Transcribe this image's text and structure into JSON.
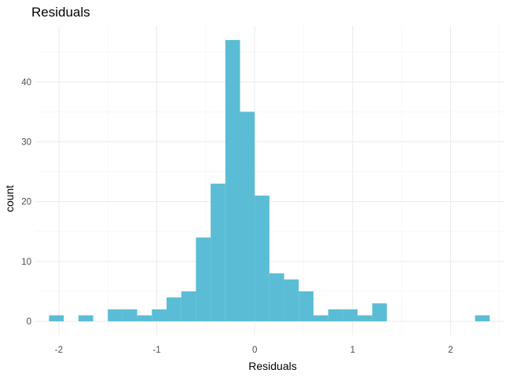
{
  "chart_data": {
    "type": "bar",
    "subtype": "histogram",
    "title": "Residuals",
    "xlabel": "Residuals",
    "ylabel": "count",
    "bin_width": 0.15,
    "bins": [
      {
        "x0": -2.1,
        "x1": -1.95,
        "count": 1
      },
      {
        "x0": -1.95,
        "x1": -1.8,
        "count": 0
      },
      {
        "x0": -1.8,
        "x1": -1.65,
        "count": 1
      },
      {
        "x0": -1.65,
        "x1": -1.5,
        "count": 0
      },
      {
        "x0": -1.5,
        "x1": -1.35,
        "count": 2
      },
      {
        "x0": -1.35,
        "x1": -1.2,
        "count": 2
      },
      {
        "x0": -1.2,
        "x1": -1.05,
        "count": 1
      },
      {
        "x0": -1.05,
        "x1": -0.9,
        "count": 2
      },
      {
        "x0": -0.9,
        "x1": -0.75,
        "count": 4
      },
      {
        "x0": -0.75,
        "x1": -0.6,
        "count": 5
      },
      {
        "x0": -0.6,
        "x1": -0.45,
        "count": 14
      },
      {
        "x0": -0.45,
        "x1": -0.3,
        "count": 23
      },
      {
        "x0": -0.3,
        "x1": -0.15,
        "count": 47
      },
      {
        "x0": -0.15,
        "x1": 0.0,
        "count": 35
      },
      {
        "x0": 0.0,
        "x1": 0.15,
        "count": 21
      },
      {
        "x0": 0.15,
        "x1": 0.3,
        "count": 8
      },
      {
        "x0": 0.3,
        "x1": 0.45,
        "count": 7
      },
      {
        "x0": 0.45,
        "x1": 0.6,
        "count": 5
      },
      {
        "x0": 0.6,
        "x1": 0.75,
        "count": 1
      },
      {
        "x0": 0.75,
        "x1": 0.9,
        "count": 2
      },
      {
        "x0": 0.9,
        "x1": 1.05,
        "count": 2
      },
      {
        "x0": 1.05,
        "x1": 1.2,
        "count": 1
      },
      {
        "x0": 1.2,
        "x1": 1.35,
        "count": 3
      },
      {
        "x0": 1.35,
        "x1": 1.5,
        "count": 0
      },
      {
        "x0": 1.5,
        "x1": 1.65,
        "count": 0
      },
      {
        "x0": 1.65,
        "x1": 1.8,
        "count": 0
      },
      {
        "x0": 1.8,
        "x1": 1.95,
        "count": 0
      },
      {
        "x0": 1.95,
        "x1": 2.1,
        "count": 0
      },
      {
        "x0": 2.1,
        "x1": 2.25,
        "count": 0
      },
      {
        "x0": 2.25,
        "x1": 2.4,
        "count": 1
      }
    ],
    "xlim": [
      -2.24,
      2.55
    ],
    "ylim": [
      -2.35,
      49.35
    ],
    "x_ticks": [
      -2,
      -1,
      0,
      1,
      2
    ],
    "x_tick_labels": [
      "-2",
      "-1",
      "0",
      "1",
      "2"
    ],
    "y_ticks": [
      0,
      10,
      20,
      30,
      40
    ],
    "y_tick_labels": [
      "0",
      "10",
      "20",
      "30",
      "40"
    ],
    "grid": true,
    "legend": "none",
    "bar_color": "#5BBCD6"
  }
}
